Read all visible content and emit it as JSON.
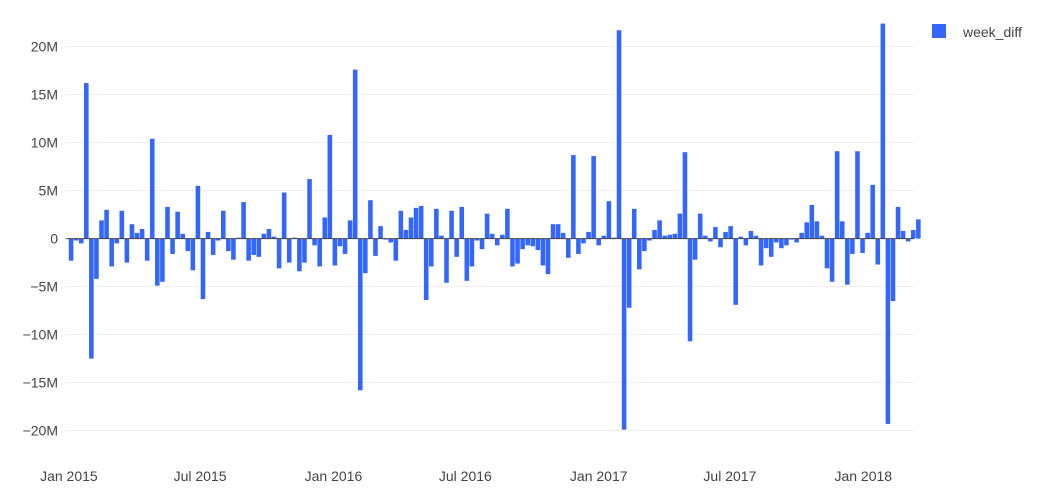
{
  "colors": {
    "bar": "#3366ff",
    "grid": "#eeeeee",
    "zero_line": "#444444",
    "text": "#444444"
  },
  "legend": {
    "label": "week_diff",
    "swatch_color": "#3366ff"
  },
  "chart_data": {
    "type": "bar",
    "title": "",
    "xlabel": "",
    "ylabel": "",
    "ylim": [
      -21.5,
      23.5
    ],
    "xlim": [
      "2014-12-28",
      "2018-03-12"
    ],
    "grid": true,
    "legend_position": "top-right",
    "y_ticks": [
      {
        "value": 20,
        "label": "20M"
      },
      {
        "value": 15,
        "label": "15M"
      },
      {
        "value": 10,
        "label": "10M"
      },
      {
        "value": 5,
        "label": "5M"
      },
      {
        "value": 0,
        "label": "0"
      },
      {
        "value": -5,
        "label": "−5M"
      },
      {
        "value": -10,
        "label": "−10M"
      },
      {
        "value": -15,
        "label": "−15M"
      },
      {
        "value": -20,
        "label": "−20M"
      }
    ],
    "x_ticks": [
      {
        "date": "2015-01-01",
        "label": "Jan 2015"
      },
      {
        "date": "2015-07-01",
        "label": "Jul 2015"
      },
      {
        "date": "2016-01-01",
        "label": "Jan 2016"
      },
      {
        "date": "2016-07-01",
        "label": "Jul 2016"
      },
      {
        "date": "2017-01-01",
        "label": "Jan 2017"
      },
      {
        "date": "2017-07-01",
        "label": "Jul 2017"
      },
      {
        "date": "2018-01-01",
        "label": "Jan 2018"
      }
    ],
    "series": [
      {
        "name": "week_diff",
        "unit": "M",
        "start_date": "2015-01-04",
        "week_step_days": 7,
        "values": [
          -2.3,
          -0.2,
          -0.5,
          16.2,
          -12.5,
          -4.2,
          1.9,
          3.0,
          -2.9,
          -0.5,
          2.9,
          -2.5,
          1.5,
          0.6,
          1.0,
          -2.3,
          10.4,
          -4.9,
          -4.5,
          3.3,
          -1.6,
          2.8,
          0.5,
          -1.3,
          -3.3,
          5.5,
          -6.3,
          0.7,
          -1.7,
          -0.2,
          2.9,
          -1.3,
          -2.2,
          0.1,
          3.8,
          -2.3,
          -1.7,
          -1.9,
          0.5,
          1.0,
          0.2,
          -3.1,
          4.8,
          -2.5,
          0.1,
          -3.4,
          -2.5,
          6.2,
          -0.7,
          -2.9,
          2.2,
          10.8,
          -2.8,
          -0.8,
          -1.6,
          1.9,
          17.6,
          -15.8,
          -3.6,
          4.0,
          -1.8,
          1.3,
          -0.1,
          -0.4,
          -2.3,
          2.9,
          0.9,
          2.2,
          3.2,
          3.4,
          -6.4,
          -2.9,
          3.1,
          0.3,
          -4.6,
          2.9,
          -1.9,
          3.3,
          -4.4,
          -2.9,
          -0.2,
          -1.1,
          2.6,
          0.5,
          -0.7,
          0.4,
          3.1,
          -2.9,
          -2.6,
          -1.1,
          -0.7,
          -0.8,
          -1.2,
          -2.8,
          -3.7,
          1.5,
          1.5,
          0.6,
          -2.0,
          8.7,
          -1.6,
          -0.5,
          0.7,
          8.6,
          -0.7,
          0.3,
          3.9,
          0.1,
          21.7,
          -19.9,
          -7.2,
          3.1,
          -3.2,
          -1.3,
          -0.2,
          0.9,
          1.9,
          0.3,
          0.4,
          0.5,
          2.6,
          9.0,
          -10.7,
          -2.2,
          2.6,
          0.3,
          -0.3,
          1.2,
          -0.9,
          0.7,
          1.3,
          -6.9,
          0.2,
          -0.7,
          0.8,
          0.3,
          -2.8,
          -1.0,
          -1.9,
          -0.4,
          -1.0,
          -0.7,
          -0.1,
          -0.4,
          0.6,
          1.7,
          3.5,
          1.8,
          0.3,
          -3.1,
          -4.5,
          9.1,
          1.8,
          -4.8,
          -1.6,
          9.1,
          -1.5,
          0.6,
          5.6,
          -2.7,
          22.4,
          -19.3,
          -6.5,
          3.3,
          0.8,
          -0.3,
          0.9,
          2.0
        ]
      }
    ]
  }
}
